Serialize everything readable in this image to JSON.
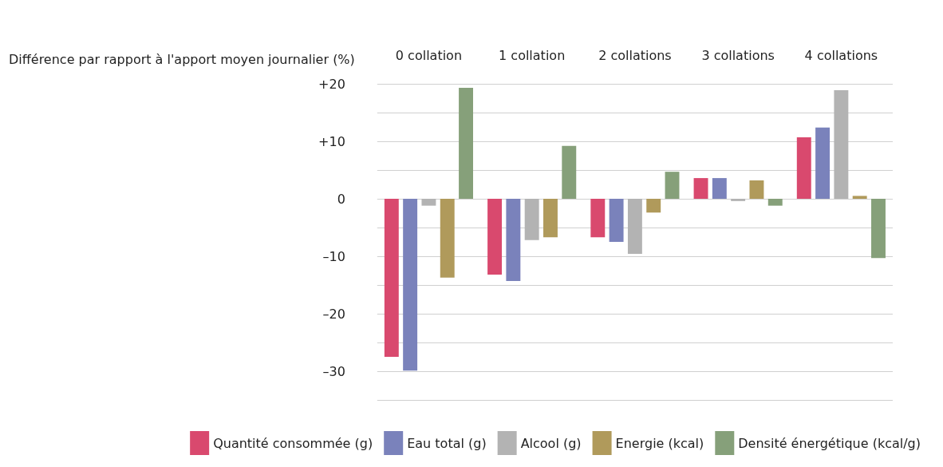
{
  "chart_data": {
    "type": "bar",
    "ylabel": "Différence par rapport à l'apport moyen journalier (%)",
    "categories": [
      "0 collation",
      "1 collation",
      "2 collations",
      "3 collations",
      "4 collations"
    ],
    "series": [
      {
        "name": "Quantité consommée (g)",
        "color": "#d9496e",
        "values": [
          -27.5,
          -13.2,
          -6.7,
          3.6,
          10.7
        ]
      },
      {
        "name": "Eau total (g)",
        "color": "#7a82bb",
        "values": [
          -29.9,
          -14.3,
          -7.5,
          3.6,
          12.4
        ]
      },
      {
        "name": "Alcool (g)",
        "color": "#b3b3b3",
        "values": [
          -1.2,
          -7.2,
          -9.6,
          -0.4,
          18.9
        ]
      },
      {
        "name": "Energie (kcal)",
        "color": "#b09a5b",
        "values": [
          -13.7,
          -6.7,
          -2.4,
          3.2,
          0.5
        ]
      },
      {
        "name": "Densité énergétique (kcal/g)",
        "color": "#86a07a",
        "values": [
          19.3,
          9.2,
          4.7,
          -1.2,
          -10.3
        ]
      }
    ],
    "ylim": [
      -35,
      20
    ],
    "yticks": [
      {
        "value": -35,
        "label": null
      },
      {
        "value": -30,
        "label": "–30"
      },
      {
        "value": -25,
        "label": null
      },
      {
        "value": -20,
        "label": "–20"
      },
      {
        "value": -15,
        "label": null
      },
      {
        "value": -10,
        "label": "–10"
      },
      {
        "value": -5,
        "label": null
      },
      {
        "value": 0,
        "label": "0"
      },
      {
        "value": 5,
        "label": null
      },
      {
        "value": 10,
        "label": "+10"
      },
      {
        "value": 15,
        "label": null
      },
      {
        "value": 20,
        "label": "+20"
      }
    ],
    "grid": "y",
    "legend": "bottom"
  }
}
